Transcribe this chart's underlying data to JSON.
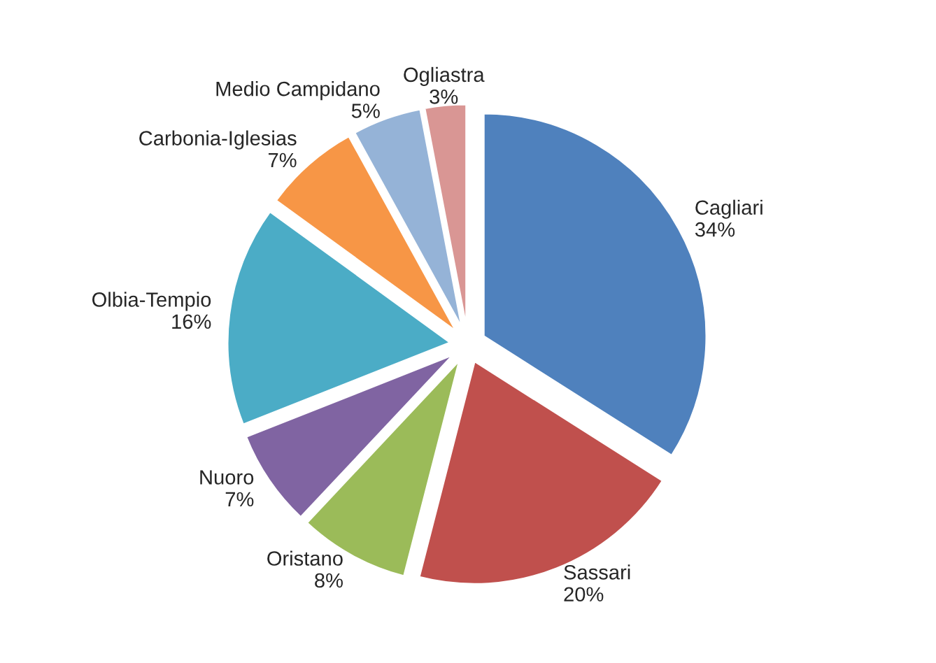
{
  "chart_data": {
    "type": "pie",
    "categories": [
      "Cagliari",
      "Sassari",
      "Oristano",
      "Nuoro",
      "Olbia-Tempio",
      "Carbonia-Iglesias",
      "Medio Campidano",
      "Ogliastra"
    ],
    "values": [
      34,
      20,
      8,
      7,
      16,
      7,
      5,
      3
    ],
    "colors": [
      "#4f81bd",
      "#c0504d",
      "#9bbb59",
      "#8064a2",
      "#4bacc6",
      "#f79646",
      "#95b3d7",
      "#d99694"
    ],
    "value_labels": [
      "34%",
      "20%",
      "8%",
      "7%",
      "16%",
      "7%",
      "5%",
      "3%"
    ],
    "legend": false
  }
}
